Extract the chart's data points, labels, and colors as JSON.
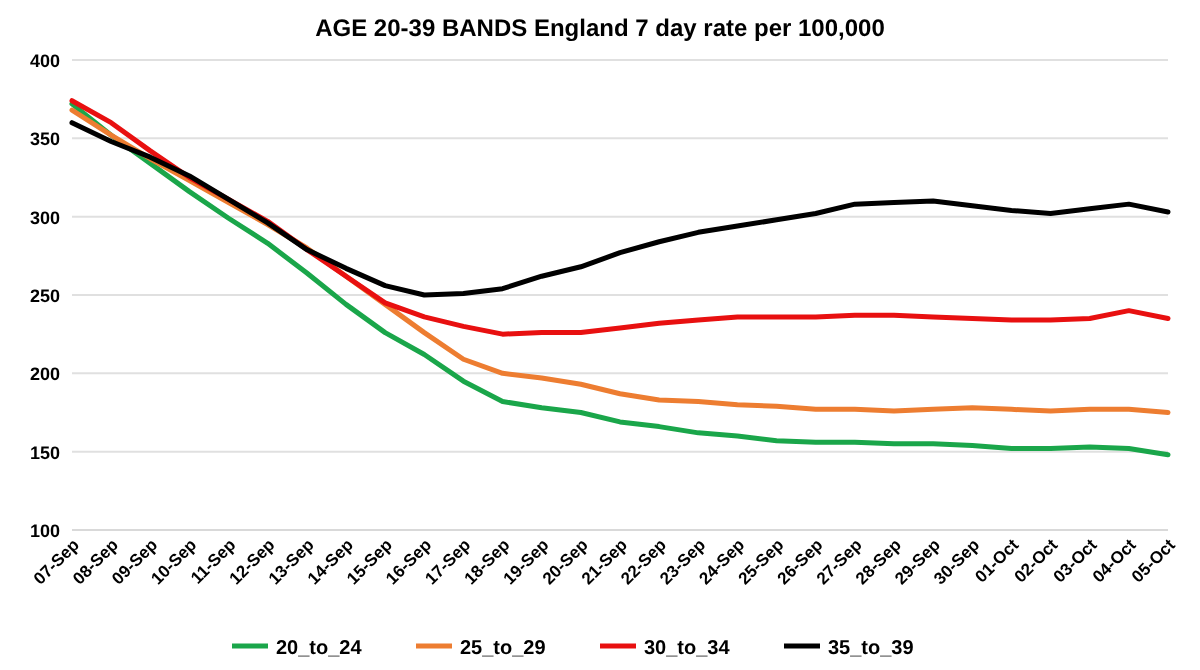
{
  "chart_data": {
    "type": "line",
    "title": "AGE 20-39 BANDS England 7 day rate per 100,000",
    "categories": [
      "07-Sep",
      "08-Sep",
      "09-Sep",
      "10-Sep",
      "11-Sep",
      "12-Sep",
      "13-Sep",
      "14-Sep",
      "15-Sep",
      "16-Sep",
      "17-Sep",
      "18-Sep",
      "19-Sep",
      "20-Sep",
      "21-Sep",
      "22-Sep",
      "23-Sep",
      "24-Sep",
      "25-Sep",
      "26-Sep",
      "27-Sep",
      "28-Sep",
      "29-Sep",
      "30-Sep",
      "01-Oct",
      "02-Oct",
      "03-Oct",
      "04-Oct",
      "05-Oct"
    ],
    "series": [
      {
        "name": "20_to_24",
        "color": "#1aa64a",
        "values": [
          372,
          352,
          334,
          316,
          299,
          283,
          264,
          244,
          226,
          212,
          195,
          182,
          178,
          175,
          169,
          166,
          162,
          160,
          157,
          156,
          156,
          155,
          155,
          154,
          152,
          152,
          153,
          152,
          148
        ]
      },
      {
        "name": "25_to_29",
        "color": "#ed7d31",
        "values": [
          368,
          352,
          337,
          323,
          309,
          295,
          280,
          262,
          244,
          226,
          209,
          200,
          197,
          193,
          187,
          183,
          182,
          180,
          179,
          177,
          177,
          176,
          177,
          178,
          177,
          176,
          177,
          177,
          175
        ]
      },
      {
        "name": "30_to_34",
        "color": "#e81010",
        "values": [
          374,
          360,
          342,
          325,
          311,
          297,
          279,
          262,
          245,
          236,
          230,
          225,
          226,
          226,
          229,
          232,
          234,
          236,
          236,
          236,
          237,
          237,
          236,
          235,
          234,
          234,
          235,
          240,
          235
        ]
      },
      {
        "name": "35_to_39",
        "color": "#000000",
        "values": [
          360,
          348,
          338,
          326,
          311,
          296,
          279,
          267,
          256,
          250,
          251,
          254,
          262,
          268,
          277,
          284,
          290,
          294,
          298,
          302,
          308,
          309,
          310,
          307,
          304,
          302,
          305,
          308,
          303
        ]
      }
    ],
    "ylim": [
      100,
      400
    ],
    "yticks": [
      100,
      150,
      200,
      250,
      300,
      350,
      400
    ],
    "grid": "y",
    "legend": "bottom",
    "marker": "none",
    "line_style": "solid"
  }
}
